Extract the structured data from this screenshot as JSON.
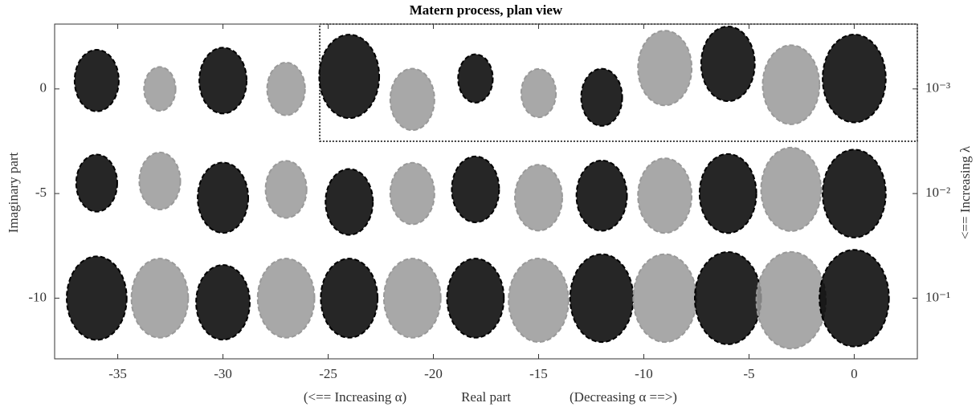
{
  "chart_data": {
    "type": "trajectory-blobs",
    "title": "Matern process, plan view",
    "xlabel": "Real part",
    "xlabel_left": "(<== Increasing α)",
    "xlabel_right": "(Decreasing α ==>)",
    "ylabel": "Imaginary part",
    "y2label": "<== Increasing λ",
    "xlim": [
      -38,
      3
    ],
    "ylim": [
      -12.9,
      3.1
    ],
    "xticks": [
      -35,
      -30,
      -25,
      -20,
      -15,
      -10,
      -5,
      0
    ],
    "yticks": [
      0,
      -5,
      -10
    ],
    "y2ticks": [
      {
        "value": 0,
        "label": "10⁻³"
      },
      {
        "value": -5,
        "label": "10⁻²"
      },
      {
        "value": -10,
        "label": "10⁻¹"
      }
    ],
    "color_cycle": [
      "#000000",
      "#999999"
    ],
    "x": [
      -36,
      -33,
      -30,
      -27,
      -24,
      -21,
      -18,
      -15,
      -12,
      -9,
      -6,
      -3,
      0
    ],
    "series": [
      {
        "values": [
          0.4,
          0,
          0.4,
          0,
          0.6,
          -0.5,
          0.5,
          -0.2,
          -0.4,
          1,
          1.2,
          0.2,
          0.5
        ],
        "radius": [
          1.4,
          1,
          1.5,
          1.2,
          1.9,
          1.4,
          1.1,
          1.1,
          1.3,
          1.7,
          1.7,
          1.8,
          2
        ]
      },
      {
        "values": [
          -4.5,
          -4.4,
          -5.2,
          -4.8,
          -5.4,
          -5,
          -4.8,
          -5.2,
          -5.1,
          -5.1,
          -5,
          -4.8,
          -5
        ],
        "radius": [
          1.3,
          1.3,
          1.6,
          1.3,
          1.5,
          1.4,
          1.5,
          1.5,
          1.6,
          1.7,
          1.8,
          1.9,
          2
        ]
      },
      {
        "values": [
          -10,
          -10,
          -10.2,
          -10,
          -10,
          -10,
          -10,
          -10.1,
          -10,
          -10,
          -10,
          -10.1,
          -10
        ],
        "radius": [
          1.9,
          1.8,
          1.7,
          1.8,
          1.8,
          1.8,
          1.8,
          1.9,
          2,
          2,
          2.1,
          2.2,
          2.2
        ]
      }
    ],
    "highlight_box": {
      "x": [
        -25.4,
        3
      ],
      "y": [
        -2.5,
        3.1
      ]
    }
  }
}
